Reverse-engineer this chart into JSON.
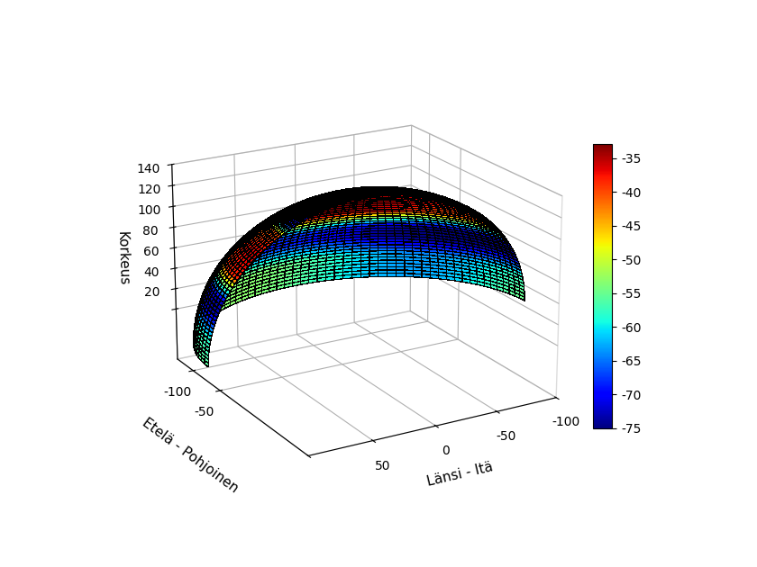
{
  "x_label": "Länsi - Itä",
  "y_label": "Etelä - Pohjoinen",
  "z_label": "Korkeus",
  "colorbar_min": -75,
  "colorbar_max": -33,
  "colorbar_ticks": [
    -75,
    -70,
    -65,
    -60,
    -55,
    -50,
    -45,
    -40,
    -35
  ],
  "background_color": "#ffffff",
  "colormap": "jet",
  "nx": 60,
  "ny": 60,
  "elev": 20,
  "azim": -120,
  "figsize": [
    8.4,
    6.3
  ],
  "dpi": 100,
  "x_ticks": [
    100,
    50,
    0,
    -50,
    -100
  ],
  "x_ticklabels": [
    "",
    "50",
    "0",
    "-50",
    "-100"
  ],
  "y_ticks": [
    -50,
    -100
  ],
  "y_ticklabels": [
    "-50",
    "-100"
  ],
  "z_ticks": [
    0,
    20,
    40,
    60,
    80,
    100,
    120,
    140
  ],
  "z_ticklabels": [
    "",
    "20",
    "40",
    "60",
    "80",
    "100",
    "120",
    "140"
  ]
}
